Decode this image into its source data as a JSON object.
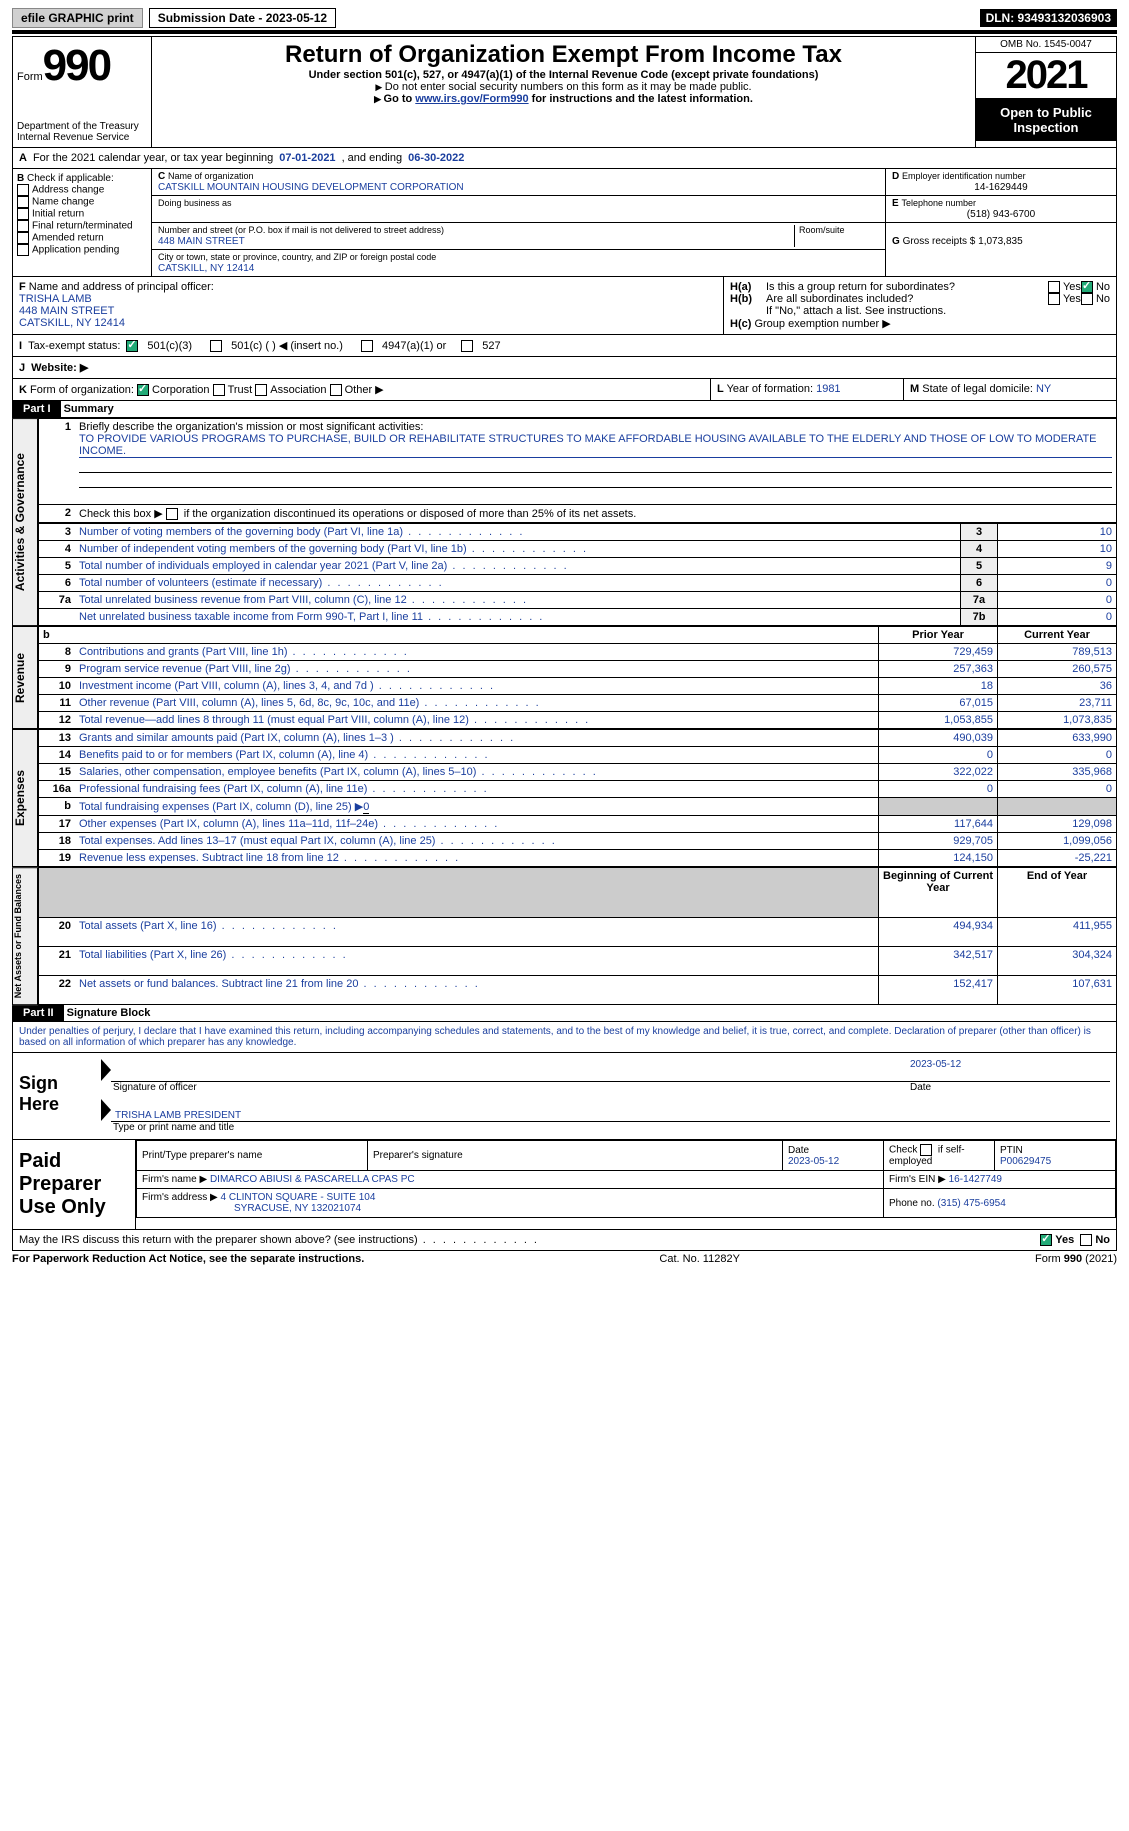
{
  "topbar": {
    "efile": "efile GRAPHIC print",
    "subdate_label": "Submission Date - 2023-05-12",
    "dln": "DLN: 93493132036903"
  },
  "header": {
    "form_word": "Form",
    "form_num": "990",
    "dept": "Department of the Treasury",
    "irs": "Internal Revenue Service",
    "title": "Return of Organization Exempt From Income Tax",
    "sub1": "Under section 501(c), 527, or 4947(a)(1) of the Internal Revenue Code (except private foundations)",
    "sub2": "Do not enter social security numbers on this form as it may be made public.",
    "sub3": "Go to ",
    "link": "www.irs.gov/Form990",
    "sub3b": " for instructions and the latest information.",
    "omb": "OMB No. 1545-0047",
    "year": "2021",
    "opi": "Open to Public Inspection"
  },
  "A": {
    "text": "For the 2021 calendar year, or tax year beginning ",
    "b1": "07-01-2021",
    "mid": " , and ending ",
    "b2": "06-30-2022"
  },
  "B": {
    "hdr": "Check if applicable:",
    "items": [
      "Address change",
      "Name change",
      "Initial return",
      "Final return/terminated",
      "Amended return",
      "Application pending"
    ]
  },
  "C": {
    "namelbl": "Name of organization",
    "name": "CATSKILL MOUNTAIN HOUSING DEVELOPMENT CORPORATION",
    "dba": "Doing business as",
    "addrlbl": "Number and street (or P.O. box if mail is not delivered to street address)",
    "room": "Room/suite",
    "addr": "448 MAIN STREET",
    "citylbl": "City or town, state or province, country, and ZIP or foreign postal code",
    "city": "CATSKILL, NY  12414"
  },
  "D": {
    "lbl": "Employer identification number",
    "val": "14-1629449"
  },
  "E": {
    "lbl": "Telephone number",
    "val": "(518) 943-6700"
  },
  "G": {
    "lbl": "Gross receipts $",
    "val": "1,073,835"
  },
  "F": {
    "lbl": "Name and address of principal officer:",
    "name": "TRISHA LAMB",
    "addr": "448 MAIN STREET",
    "city": "CATSKILL, NY  12414"
  },
  "H": {
    "a": "Is this a group return for subordinates?",
    "b": "Are all subordinates included?",
    "bnote": "If \"No,\" attach a list. See instructions.",
    "c": "Group exemption number ▶",
    "yes": "Yes",
    "no": "No"
  },
  "I": {
    "lbl": "Tax-exempt status:",
    "o1": "501(c)(3)",
    "o2": "501(c) (  ) ◀ (insert no.)",
    "o3": "4947(a)(1) or",
    "o4": "527"
  },
  "J": {
    "lbl": "Website: ▶"
  },
  "K": {
    "lbl": "Form of organization:",
    "o1": "Corporation",
    "o2": "Trust",
    "o3": "Association",
    "o4": "Other ▶"
  },
  "L": {
    "lbl": "Year of formation:",
    "val": "1981"
  },
  "M": {
    "lbl": "State of legal domicile:",
    "val": "NY"
  },
  "part1": {
    "bar": "Part I",
    "title": "Summary"
  },
  "s1": {
    "n": "1",
    "t": "Briefly describe the organization's mission or most significant activities:",
    "v": "TO PROVIDE VARIOUS PROGRAMS TO PURCHASE, BUILD OR REHABILITATE STRUCTURES TO MAKE AFFORDABLE HOUSING AVAILABLE TO THE ELDERLY AND THOSE OF LOW TO MODERATE INCOME."
  },
  "s2": {
    "n": "2",
    "t": "Check this box ▶",
    "t2": " if the organization discontinued its operations or disposed of more than 25% of its net assets."
  },
  "side": {
    "a": "Activities & Governance",
    "b": "Revenue",
    "c": "Expenses",
    "d": "Net Assets or Fund Balances"
  },
  "rows_ag": [
    {
      "n": "3",
      "t": "Number of voting members of the governing body (Part VI, line 1a)",
      "i": "3",
      "v": "10"
    },
    {
      "n": "4",
      "t": "Number of independent voting members of the governing body (Part VI, line 1b)",
      "i": "4",
      "v": "10"
    },
    {
      "n": "5",
      "t": "Total number of individuals employed in calendar year 2021 (Part V, line 2a)",
      "i": "5",
      "v": "9"
    },
    {
      "n": "6",
      "t": "Total number of volunteers (estimate if necessary)",
      "i": "6",
      "v": "0"
    },
    {
      "n": "7a",
      "t": "Total unrelated business revenue from Part VIII, column (C), line 12",
      "i": "7a",
      "v": "0"
    },
    {
      "n": "",
      "t": "Net unrelated business taxable income from Form 990-T, Part I, line 11",
      "i": "7b",
      "v": "0"
    }
  ],
  "pyhdr": {
    "b": "b",
    "py": "Prior Year",
    "cy": "Current Year"
  },
  "rows_rev": [
    {
      "n": "8",
      "t": "Contributions and grants (Part VIII, line 1h)",
      "p": "729,459",
      "c": "789,513"
    },
    {
      "n": "9",
      "t": "Program service revenue (Part VIII, line 2g)",
      "p": "257,363",
      "c": "260,575"
    },
    {
      "n": "10",
      "t": "Investment income (Part VIII, column (A), lines 3, 4, and 7d )",
      "p": "18",
      "c": "36"
    },
    {
      "n": "11",
      "t": "Other revenue (Part VIII, column (A), lines 5, 6d, 8c, 9c, 10c, and 11e)",
      "p": "67,015",
      "c": "23,711"
    },
    {
      "n": "12",
      "t": "Total revenue—add lines 8 through 11 (must equal Part VIII, column (A), line 12)",
      "p": "1,053,855",
      "c": "1,073,835"
    }
  ],
  "rows_exp": [
    {
      "n": "13",
      "t": "Grants and similar amounts paid (Part IX, column (A), lines 1–3 )",
      "p": "490,039",
      "c": "633,990"
    },
    {
      "n": "14",
      "t": "Benefits paid to or for members (Part IX, column (A), line 4)",
      "p": "0",
      "c": "0"
    },
    {
      "n": "15",
      "t": "Salaries, other compensation, employee benefits (Part IX, column (A), lines 5–10)",
      "p": "322,022",
      "c": "335,968"
    },
    {
      "n": "16a",
      "t": "Professional fundraising fees (Part IX, column (A), line 11e)",
      "p": "0",
      "c": "0"
    },
    {
      "n": "b",
      "t": "Total fundraising expenses (Part IX, column (D), line 25) ▶",
      "u": "0",
      "shade": true
    },
    {
      "n": "17",
      "t": "Other expenses (Part IX, column (A), lines 11a–11d, 11f–24e)",
      "p": "117,644",
      "c": "129,098"
    },
    {
      "n": "18",
      "t": "Total expenses. Add lines 13–17 (must equal Part IX, column (A), line 25)",
      "p": "929,705",
      "c": "1,099,056"
    },
    {
      "n": "19",
      "t": "Revenue less expenses. Subtract line 18 from line 12",
      "p": "124,150",
      "c": "-25,221"
    }
  ],
  "nahdr": {
    "py": "Beginning of Current Year",
    "cy": "End of Year"
  },
  "rows_na": [
    {
      "n": "20",
      "t": "Total assets (Part X, line 16)",
      "p": "494,934",
      "c": "411,955"
    },
    {
      "n": "21",
      "t": "Total liabilities (Part X, line 26)",
      "p": "342,517",
      "c": "304,324"
    },
    {
      "n": "22",
      "t": "Net assets or fund balances. Subtract line 21 from line 20",
      "p": "152,417",
      "c": "107,631"
    }
  ],
  "part2": {
    "bar": "Part II",
    "title": "Signature Block"
  },
  "pen": "Under penalties of perjury, I declare that I have examined this return, including accompanying schedules and statements, and to the best of my knowledge and belief, it is true, correct, and complete. Declaration of preparer (other than officer) is based on all information of which preparer has any knowledge.",
  "sign": {
    "here": "Sign Here",
    "sig": "Signature of officer",
    "date": "Date",
    "dv": "2023-05-12",
    "name": "TRISHA LAMB  PRESIDENT",
    "namelbl": "Type or print name and title"
  },
  "prep": {
    "title": "Paid Preparer Use Only",
    "h1": "Print/Type preparer's name",
    "h2": "Preparer's signature",
    "h3": "Date",
    "h3v": "2023-05-12",
    "h4": "Check",
    "h4b": "if self-employed",
    "h5": "PTIN",
    "h5v": "P00629475",
    "firm": "Firm's name    ▶",
    "firmv": "DIMARCO ABIUSI & PASCARELLA CPAS PC",
    "ein": "Firm's EIN ▶",
    "einv": "16-1427749",
    "addr": "Firm's address ▶",
    "addrv": "4 CLINTON SQUARE - SUITE 104",
    "addrv2": "SYRACUSE, NY  132021074",
    "ph": "Phone no.",
    "phv": "(315) 475-6954"
  },
  "discuss": "May the IRS discuss this return with the preparer shown above? (see instructions)",
  "foot": {
    "l": "For Paperwork Reduction Act Notice, see the separate instructions.",
    "c": "Cat. No. 11282Y",
    "r": "Form 990 (2021)"
  }
}
